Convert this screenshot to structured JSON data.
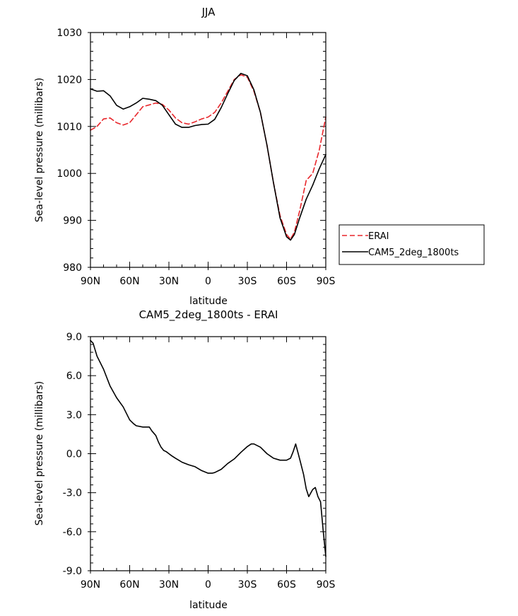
{
  "chart_data": [
    {
      "type": "line",
      "title": "JJA",
      "xlabel": "latitude",
      "ylabel": "Sea-level pressure (millibars)",
      "x_ticks": [
        90,
        60,
        30,
        0,
        -30,
        -60,
        -90
      ],
      "x_tick_labels": [
        "90N",
        "60N",
        "30N",
        "0",
        "30S",
        "60S",
        "90S"
      ],
      "xlim": [
        90,
        -90
      ],
      "y_ticks": [
        980,
        990,
        1000,
        1010,
        1020,
        1030
      ],
      "y_tick_labels": [
        "980",
        "990",
        "1000",
        "1010",
        "1020",
        "1030"
      ],
      "ylim": [
        980,
        1030
      ],
      "grid": false,
      "legend_placement": "right",
      "series": [
        {
          "name": "ERAI",
          "color": "#e8262b",
          "dash": "dashed",
          "x": [
            90,
            85,
            80,
            75,
            70,
            65,
            60,
            55,
            50,
            45,
            40,
            35,
            30,
            25,
            20,
            15,
            10,
            5,
            0,
            -5,
            -10,
            -15,
            -20,
            -25,
            -30,
            -35,
            -40,
            -45,
            -50,
            -55,
            -60,
            -63,
            -66,
            -70,
            -75,
            -80,
            -85,
            -90
          ],
          "y": [
            1009.2,
            1010.0,
            1011.6,
            1011.8,
            1010.8,
            1010.3,
            1010.8,
            1012.5,
            1014.2,
            1014.6,
            1015.0,
            1014.7,
            1013.5,
            1011.8,
            1010.8,
            1010.5,
            1011.0,
            1011.6,
            1012.0,
            1013.0,
            1015.0,
            1017.5,
            1020.0,
            1021.0,
            1020.5,
            1017.5,
            1013.0,
            1006.0,
            998.0,
            991.0,
            987.0,
            986.0,
            987.5,
            992.0,
            998.5,
            1000.0,
            1005.0,
            1012.0
          ]
        },
        {
          "name": "CAM5_2deg_1800ts",
          "color": "#000000",
          "dash": "solid",
          "x": [
            90,
            85,
            80,
            75,
            70,
            65,
            60,
            55,
            50,
            45,
            40,
            35,
            30,
            25,
            20,
            15,
            10,
            5,
            0,
            -5,
            -10,
            -15,
            -20,
            -25,
            -30,
            -35,
            -40,
            -45,
            -50,
            -55,
            -60,
            -63,
            -66,
            -70,
            -75,
            -80,
            -85,
            -90
          ],
          "y": [
            1018.0,
            1017.5,
            1017.6,
            1016.5,
            1014.5,
            1013.7,
            1014.2,
            1015.0,
            1016.0,
            1015.8,
            1015.5,
            1014.5,
            1012.5,
            1010.5,
            1009.8,
            1009.8,
            1010.2,
            1010.4,
            1010.5,
            1011.5,
            1014.0,
            1017.0,
            1019.8,
            1021.3,
            1020.8,
            1017.8,
            1013.0,
            1006.0,
            998.0,
            990.5,
            986.5,
            985.8,
            987.0,
            990.5,
            994.5,
            997.5,
            1001.0,
            1004.0
          ]
        }
      ]
    },
    {
      "type": "line",
      "title": "CAM5_2deg_1800ts - ERAI",
      "xlabel": "latitude",
      "ylabel": "Sea-level pressure (millibars)",
      "x_ticks": [
        90,
        60,
        30,
        0,
        -30,
        -60,
        -90
      ],
      "x_tick_labels": [
        "90N",
        "60N",
        "30N",
        "0",
        "30S",
        "60S",
        "90S"
      ],
      "xlim": [
        90,
        -90
      ],
      "y_ticks": [
        -9,
        -6,
        -3,
        0,
        3,
        6,
        9
      ],
      "y_tick_labels": [
        "-9.0",
        "-6.0",
        "-3.0",
        "0.0",
        "3.0",
        "6.0",
        "9.0"
      ],
      "ylim": [
        -9,
        9
      ],
      "grid": false,
      "series": [
        {
          "color": "#000000",
          "dash": "solid",
          "x": [
            90,
            88,
            85,
            80,
            75,
            70,
            65,
            60,
            57,
            55,
            50,
            45,
            43,
            40,
            38,
            36,
            34,
            32,
            30,
            28,
            25,
            20,
            15,
            10,
            5,
            0,
            -3,
            -5,
            -10,
            -15,
            -20,
            -25,
            -30,
            -33,
            -35,
            -40,
            -45,
            -50,
            -55,
            -60,
            -63,
            -65,
            -67,
            -70,
            -73,
            -75,
            -77,
            -80,
            -82,
            -84,
            -86,
            -88,
            -90
          ],
          "y": [
            8.7,
            8.5,
            7.5,
            6.5,
            5.2,
            4.3,
            3.6,
            2.6,
            2.3,
            2.15,
            2.05,
            2.05,
            1.75,
            1.4,
            0.9,
            0.5,
            0.25,
            0.15,
            0.0,
            -0.15,
            -0.35,
            -0.65,
            -0.85,
            -1.0,
            -1.3,
            -1.5,
            -1.5,
            -1.45,
            -1.2,
            -0.75,
            -0.4,
            0.1,
            0.55,
            0.75,
            0.75,
            0.5,
            0.0,
            -0.35,
            -0.5,
            -0.5,
            -0.35,
            0.15,
            0.75,
            -0.4,
            -1.6,
            -2.7,
            -3.3,
            -2.75,
            -2.6,
            -3.3,
            -3.7,
            -5.9,
            -7.9
          ]
        }
      ]
    }
  ]
}
